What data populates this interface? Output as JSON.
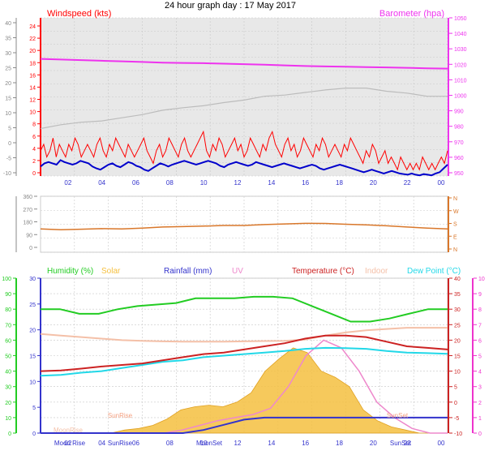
{
  "title": "24 hour graph day : 17 May 2017",
  "colors": {
    "plot_bg": "#e8e8e8",
    "grid": "#c8c8c8",
    "wind_gust": "#ff0000",
    "wind_avg": "#0000cc",
    "barometer": "#ee33ee",
    "baro_gray": "#bcbcbc",
    "direction": "#d9772a",
    "humidity": "#22cc22",
    "rain": "#3333cc",
    "temperature": "#cc2222",
    "indoor": "#f4c0a8",
    "dewpoint": "#22d8e8",
    "solar": "#f5c040",
    "uv": "#ee88cc",
    "wind_axis": "#ff0000",
    "baro_axis": "#ee33ee",
    "dir_axis": "#d9772a",
    "hum_axis": "#22cc22",
    "rain_axis": "#3333cc",
    "temp_axis": "#cc2222",
    "uv_axis": "#ee33cc"
  },
  "chart_data": [
    {
      "type": "line",
      "name": "wind",
      "left_axis_label": "Windspeed (kts)",
      "right_axis_label": "Barometer (hpa)",
      "x_ticks": [
        "02",
        "04",
        "06",
        "08",
        "10",
        "12",
        "14",
        "16",
        "18",
        "20",
        "22",
        "00"
      ],
      "outer_left_ticks": [
        "40",
        "35",
        "30",
        "25",
        "20",
        "15",
        "10",
        "5",
        "0",
        "-5",
        "-10"
      ],
      "wind_ticks": [
        "24",
        "22",
        "20",
        "18",
        "16",
        "14",
        "12",
        "10",
        "8",
        "6",
        "4",
        "2",
        "0"
      ],
      "baro_ticks": [
        "1050",
        "1040",
        "1030",
        "1020",
        "1010",
        "1000",
        "990",
        "980",
        "970",
        "960",
        "950"
      ],
      "ylim": [
        0,
        25
      ],
      "baro_ylim": [
        947.5,
        1050
      ],
      "series": [
        {
          "key": "gust",
          "values": [
            4,
            5,
            3,
            4,
            6,
            3,
            5,
            4,
            3,
            5,
            4,
            6,
            5,
            3,
            4,
            5,
            4,
            3,
            5,
            6,
            4,
            3,
            5,
            4,
            6,
            5,
            4,
            3,
            5,
            4,
            3,
            4,
            5,
            6,
            4,
            3,
            2,
            4,
            5,
            3,
            4,
            6,
            5,
            4,
            3,
            5,
            6,
            4,
            3,
            4,
            5,
            6,
            7,
            4,
            3,
            5,
            4,
            6,
            5,
            3,
            4,
            5,
            6,
            4,
            5,
            3,
            4,
            6,
            5,
            4,
            3,
            5,
            4,
            6,
            7,
            5,
            4,
            3,
            5,
            6,
            4,
            5,
            3,
            4,
            6,
            5,
            4,
            3,
            5,
            4,
            6,
            5,
            3,
            4,
            5,
            4,
            3,
            5,
            4,
            6,
            5,
            4,
            3,
            2,
            4,
            3,
            5,
            4,
            2,
            3,
            4,
            2,
            3,
            2,
            1,
            3,
            2,
            1,
            2,
            1,
            2,
            1,
            3,
            2,
            1,
            2,
            1,
            2,
            3,
            2,
            4
          ]
        },
        {
          "key": "avg",
          "values": [
            1.5,
            2,
            2.2,
            2,
            1.8,
            2.5,
            2.2,
            2,
            1.8,
            2,
            2.4,
            2.2,
            2,
            1.5,
            1.2,
            1,
            1.4,
            1.8,
            2,
            1.6,
            1.4,
            1.8,
            2.2,
            2,
            1.6,
            1.4,
            1,
            0.8,
            1.2,
            1.6,
            2,
            1.8,
            1.5,
            1.8,
            2,
            2.2,
            2.4,
            2.2,
            2,
            1.8,
            2,
            2.2,
            2.4,
            2.2,
            2,
            1.6,
            1.4,
            1.8,
            2,
            2.2,
            2,
            1.8,
            1.6,
            1.8,
            2.2,
            2,
            1.8,
            1.6,
            1.4,
            1.6,
            1.8,
            2,
            1.8,
            1.6,
            1.4,
            1.2,
            1.4,
            1.6,
            1.8,
            1.6,
            1.2,
            1,
            1.2,
            1.4,
            1.6,
            1.8,
            1.6,
            1.4,
            1.2,
            1,
            0.8,
            0.6,
            0.8,
            1,
            0.8,
            0.6,
            0.4,
            0.6,
            0.8,
            0.6,
            0.4,
            0.3,
            0.2,
            0.4,
            0.2,
            0.1,
            0.3,
            0.2,
            0.1,
            0.4,
            0.6,
            1.2,
            1.8
          ]
        },
        {
          "key": "barometer",
          "values": [
            1023.4,
            1023,
            1022.6,
            1022.2,
            1021.8,
            1021.4,
            1021,
            1020.8,
            1020.6,
            1020.3,
            1020,
            1019.6,
            1019.2,
            1018.8,
            1018.5,
            1018.3,
            1018.1,
            1017.9,
            1017.6,
            1017.3,
            1017.1
          ]
        },
        {
          "key": "gray",
          "values": [
            7.5,
            8.1,
            8.5,
            8.7,
            9.2,
            9.7,
            10.4,
            10.8,
            11.1,
            11.6,
            12,
            12.6,
            12.8,
            13.2,
            13.6,
            13.9,
            13.9,
            13.4,
            13.1,
            12.6,
            12.6
          ]
        }
      ]
    },
    {
      "type": "line",
      "name": "direction",
      "outer_left_ticks": [
        "360",
        "270",
        "180",
        "90",
        "0"
      ],
      "right_ticks": [
        "N",
        "W",
        "S",
        "E",
        "N"
      ],
      "x_ticks": [
        "02",
        "04",
        "06",
        "08",
        "10",
        "12",
        "14",
        "16",
        "18",
        "20",
        "22",
        "00"
      ],
      "ylim": [
        0,
        360
      ],
      "values": [
        150,
        145,
        148,
        152,
        150,
        155,
        162,
        165,
        168,
        172,
        172,
        178,
        182,
        186,
        185,
        180,
        176,
        170,
        162,
        155,
        150
      ]
    },
    {
      "type": "line",
      "name": "climate",
      "legend": [
        {
          "label": "Humidity (%)",
          "color_key": "humidity"
        },
        {
          "label": "Solar",
          "color_key": "solar"
        },
        {
          "label": "Rainfall (mm)",
          "color_key": "rain"
        },
        {
          "label": "UV",
          "color_key": "uv"
        },
        {
          "label": "Temperature (°C)",
          "color_key": "temperature"
        },
        {
          "label": "Indoor",
          "color_key": "indoor"
        },
        {
          "label": "Dew Point (°C)",
          "color_key": "dewpoint"
        }
      ],
      "hum_ticks": [
        "100",
        "90",
        "80",
        "70",
        "60",
        "50",
        "40",
        "30",
        "20",
        "10",
        "0"
      ],
      "rain_ticks": [
        "30",
        "25",
        "20",
        "15",
        "10",
        "5",
        "0"
      ],
      "temp_ticks": [
        "40",
        "35",
        "30",
        "25",
        "20",
        "15",
        "10",
        "5",
        "0",
        "-5",
        "-10"
      ],
      "uv_ticks": [
        "10",
        "9",
        "8",
        "7",
        "6",
        "5",
        "4",
        "3",
        "2",
        "1",
        "0"
      ],
      "x_ticks": [
        "02",
        "04",
        "06",
        "08",
        "10",
        "12",
        "14",
        "16",
        "18",
        "20",
        "22",
        "00"
      ],
      "temp_ylim": [
        -10,
        40
      ],
      "humidity_values": [
        80,
        80,
        77,
        77,
        80,
        82,
        83,
        84,
        87,
        87,
        87,
        88,
        88,
        87,
        82,
        77,
        72,
        72,
        74,
        77,
        80,
        80
      ],
      "temperature_values": [
        10,
        10.2,
        10.8,
        11.5,
        12,
        12.5,
        13.5,
        14.5,
        15.5,
        16,
        17,
        18,
        19,
        20.5,
        21.5,
        21.5,
        21,
        19.5,
        18,
        17.5,
        17
      ],
      "dewpoint_values": [
        8.5,
        8.8,
        9.5,
        10,
        11,
        12,
        13,
        13.5,
        14.5,
        15,
        15.5,
        16,
        16.5,
        17.2,
        17.5,
        17.4,
        17.2,
        16.5,
        16,
        15.8,
        15.6
      ],
      "indoor_values": [
        22,
        21.5,
        21,
        20.5,
        20,
        19.8,
        19.6,
        19.5,
        19.5,
        19.5,
        19.6,
        19.7,
        19.8,
        20.2,
        21.5,
        22.5,
        23.2,
        23.6,
        24,
        24,
        24
      ],
      "rain_values": [
        0,
        0,
        0,
        0,
        0,
        0,
        0,
        0,
        0.6,
        1.6,
        2.6,
        3,
        3,
        3,
        3,
        3,
        3,
        3,
        3,
        3,
        3
      ],
      "solar_values": [
        0,
        0,
        0,
        0,
        0,
        0,
        2,
        3,
        5,
        9,
        15,
        17,
        18,
        17,
        20,
        26,
        40,
        48,
        55,
        52,
        40,
        36,
        30,
        15,
        8,
        4,
        2,
        0,
        0,
        0
      ],
      "uv_values": [
        0,
        0,
        0,
        0,
        0,
        0,
        0,
        0,
        0.2,
        0.5,
        0.8,
        1,
        1.2,
        1.6,
        3,
        5,
        6,
        5.5,
        4,
        2,
        1,
        0.3,
        0,
        0
      ],
      "annotations": [
        "Moon Rise",
        "SunRise",
        "MoonSet",
        "SunSet",
        "MoonRise",
        "SunRise",
        "SunSet"
      ]
    }
  ]
}
